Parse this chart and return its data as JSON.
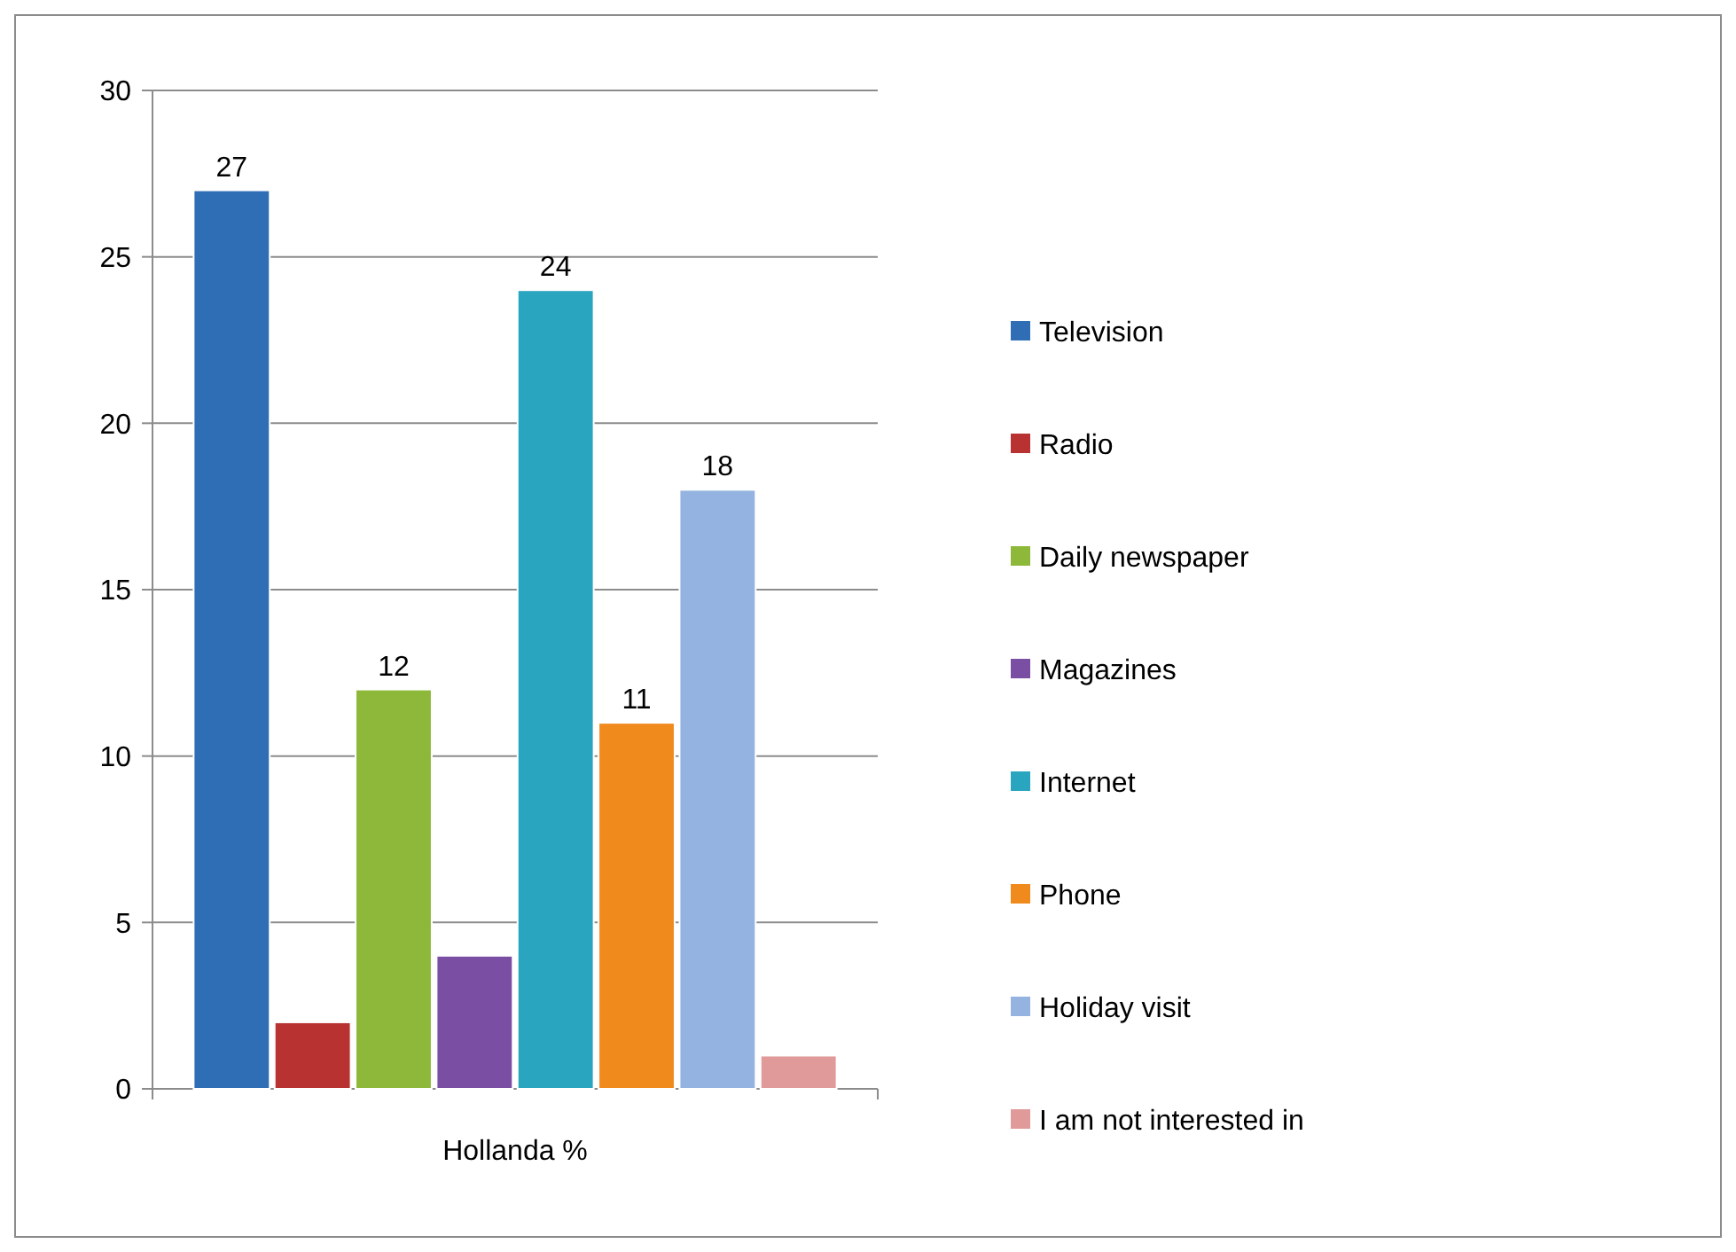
{
  "chart_data": {
    "type": "bar",
    "categories": [
      "Hollanda %"
    ],
    "series": [
      {
        "name": "Television",
        "color": "#2f6db5",
        "values": [
          27
        ],
        "value_labels": [
          "27"
        ]
      },
      {
        "name": "Radio",
        "color": "#b83232",
        "values": [
          2
        ],
        "value_labels": [
          null
        ]
      },
      {
        "name": "Daily newspaper",
        "color": "#8db83a",
        "values": [
          12
        ],
        "value_labels": [
          "12"
        ]
      },
      {
        "name": "Magazines",
        "color": "#7a4fa3",
        "values": [
          4
        ],
        "value_labels": [
          null
        ]
      },
      {
        "name": "Internet",
        "color": "#2aa5c0",
        "values": [
          24
        ],
        "value_labels": [
          "24"
        ]
      },
      {
        "name": "Phone",
        "color": "#f08a1c",
        "values": [
          11
        ],
        "value_labels": [
          "11"
        ]
      },
      {
        "name": "Holiday visit",
        "color": "#94b3e0",
        "values": [
          18
        ],
        "value_labels": [
          "18"
        ]
      },
      {
        "name": "I am not interested in",
        "color": "#e09a9a",
        "values": [
          1
        ],
        "value_labels": [
          null
        ]
      }
    ],
    "ylim": [
      0,
      30
    ],
    "yticks": [
      0,
      5,
      10,
      15,
      20,
      25,
      30
    ],
    "grid": "y",
    "legend": "right"
  }
}
